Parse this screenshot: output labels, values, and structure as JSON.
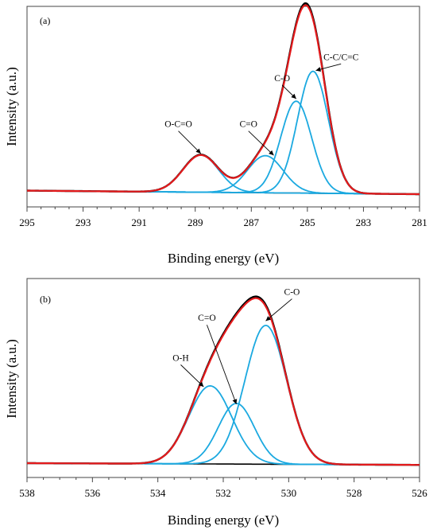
{
  "chart_data": [
    {
      "type": "line",
      "panel_label": "(a)",
      "xlabel": "Binding energy (eV)",
      "ylabel": "Intensity (a.u.)",
      "xlim": [
        295,
        281
      ],
      "x_reversed": true,
      "x_ticks": [
        "295",
        "293",
        "291",
        "289",
        "287",
        "285",
        "283",
        "281"
      ],
      "y_ticks_labeled": false,
      "colors": {
        "envelope": "#e41a1c",
        "raw": "#000000",
        "component": "#1ba9e0",
        "background": "#000000"
      },
      "background": {
        "name": "",
        "points": [
          [
            295,
            0.02
          ],
          [
            281,
            0.0
          ]
        ]
      },
      "components": [
        {
          "name": "O-C=O",
          "center": 288.8,
          "height": 0.21,
          "fwhm": 1.5
        },
        {
          "name": "C=O",
          "center": 286.5,
          "height": 0.21,
          "fwhm": 1.5
        },
        {
          "name": "C-O",
          "center": 285.4,
          "height": 0.52,
          "fwhm": 1.3
        },
        {
          "name": "C-C/C=C",
          "center": 284.8,
          "height": 0.69,
          "fwhm": 1.3
        }
      ],
      "annotations": [
        {
          "text": "O-C=O",
          "x": 289.6,
          "y": 0.38,
          "arrow_to": [
            288.8,
            0.23
          ]
        },
        {
          "text": "C=O",
          "x": 287.1,
          "y": 0.38,
          "arrow_to": [
            286.2,
            0.22
          ]
        },
        {
          "text": "C-O",
          "x": 285.9,
          "y": 0.64,
          "arrow_to": [
            285.4,
            0.54
          ]
        },
        {
          "text": "C-C/C=C",
          "x": 283.8,
          "y": 0.76,
          "arrow_to": [
            284.7,
            0.7
          ]
        }
      ]
    },
    {
      "type": "line",
      "panel_label": "(b)",
      "xlabel": "Binding energy (eV)",
      "ylabel": "Intensity (a.u.)",
      "xlim": [
        538,
        526
      ],
      "x_reversed": true,
      "x_ticks": [
        "538",
        "536",
        "534",
        "532",
        "530",
        "528",
        "526"
      ],
      "y_ticks_labeled": false,
      "colors": {
        "envelope": "#e41a1c",
        "raw": "#000000",
        "component": "#1ba9e0",
        "background": "#000000"
      },
      "background": {
        "name": "",
        "points": [
          [
            538,
            0.0
          ],
          [
            526,
            -0.01
          ]
        ]
      },
      "components": [
        {
          "name": "O-H",
          "center": 532.4,
          "height": 0.45,
          "fwhm": 1.55
        },
        {
          "name": "C=O",
          "center": 531.6,
          "height": 0.35,
          "fwhm": 1.3
        },
        {
          "name": "C-O",
          "center": 530.7,
          "height": 0.8,
          "fwhm": 1.5
        }
      ],
      "annotations": [
        {
          "text": "O-H",
          "x": 533.3,
          "y": 0.59,
          "arrow_to": [
            532.6,
            0.44
          ]
        },
        {
          "text": "C=O",
          "x": 532.5,
          "y": 0.82,
          "arrow_to": [
            531.6,
            0.34
          ]
        },
        {
          "text": "C-O",
          "x": 529.9,
          "y": 0.97,
          "arrow_to": [
            530.7,
            0.82
          ]
        }
      ]
    }
  ]
}
